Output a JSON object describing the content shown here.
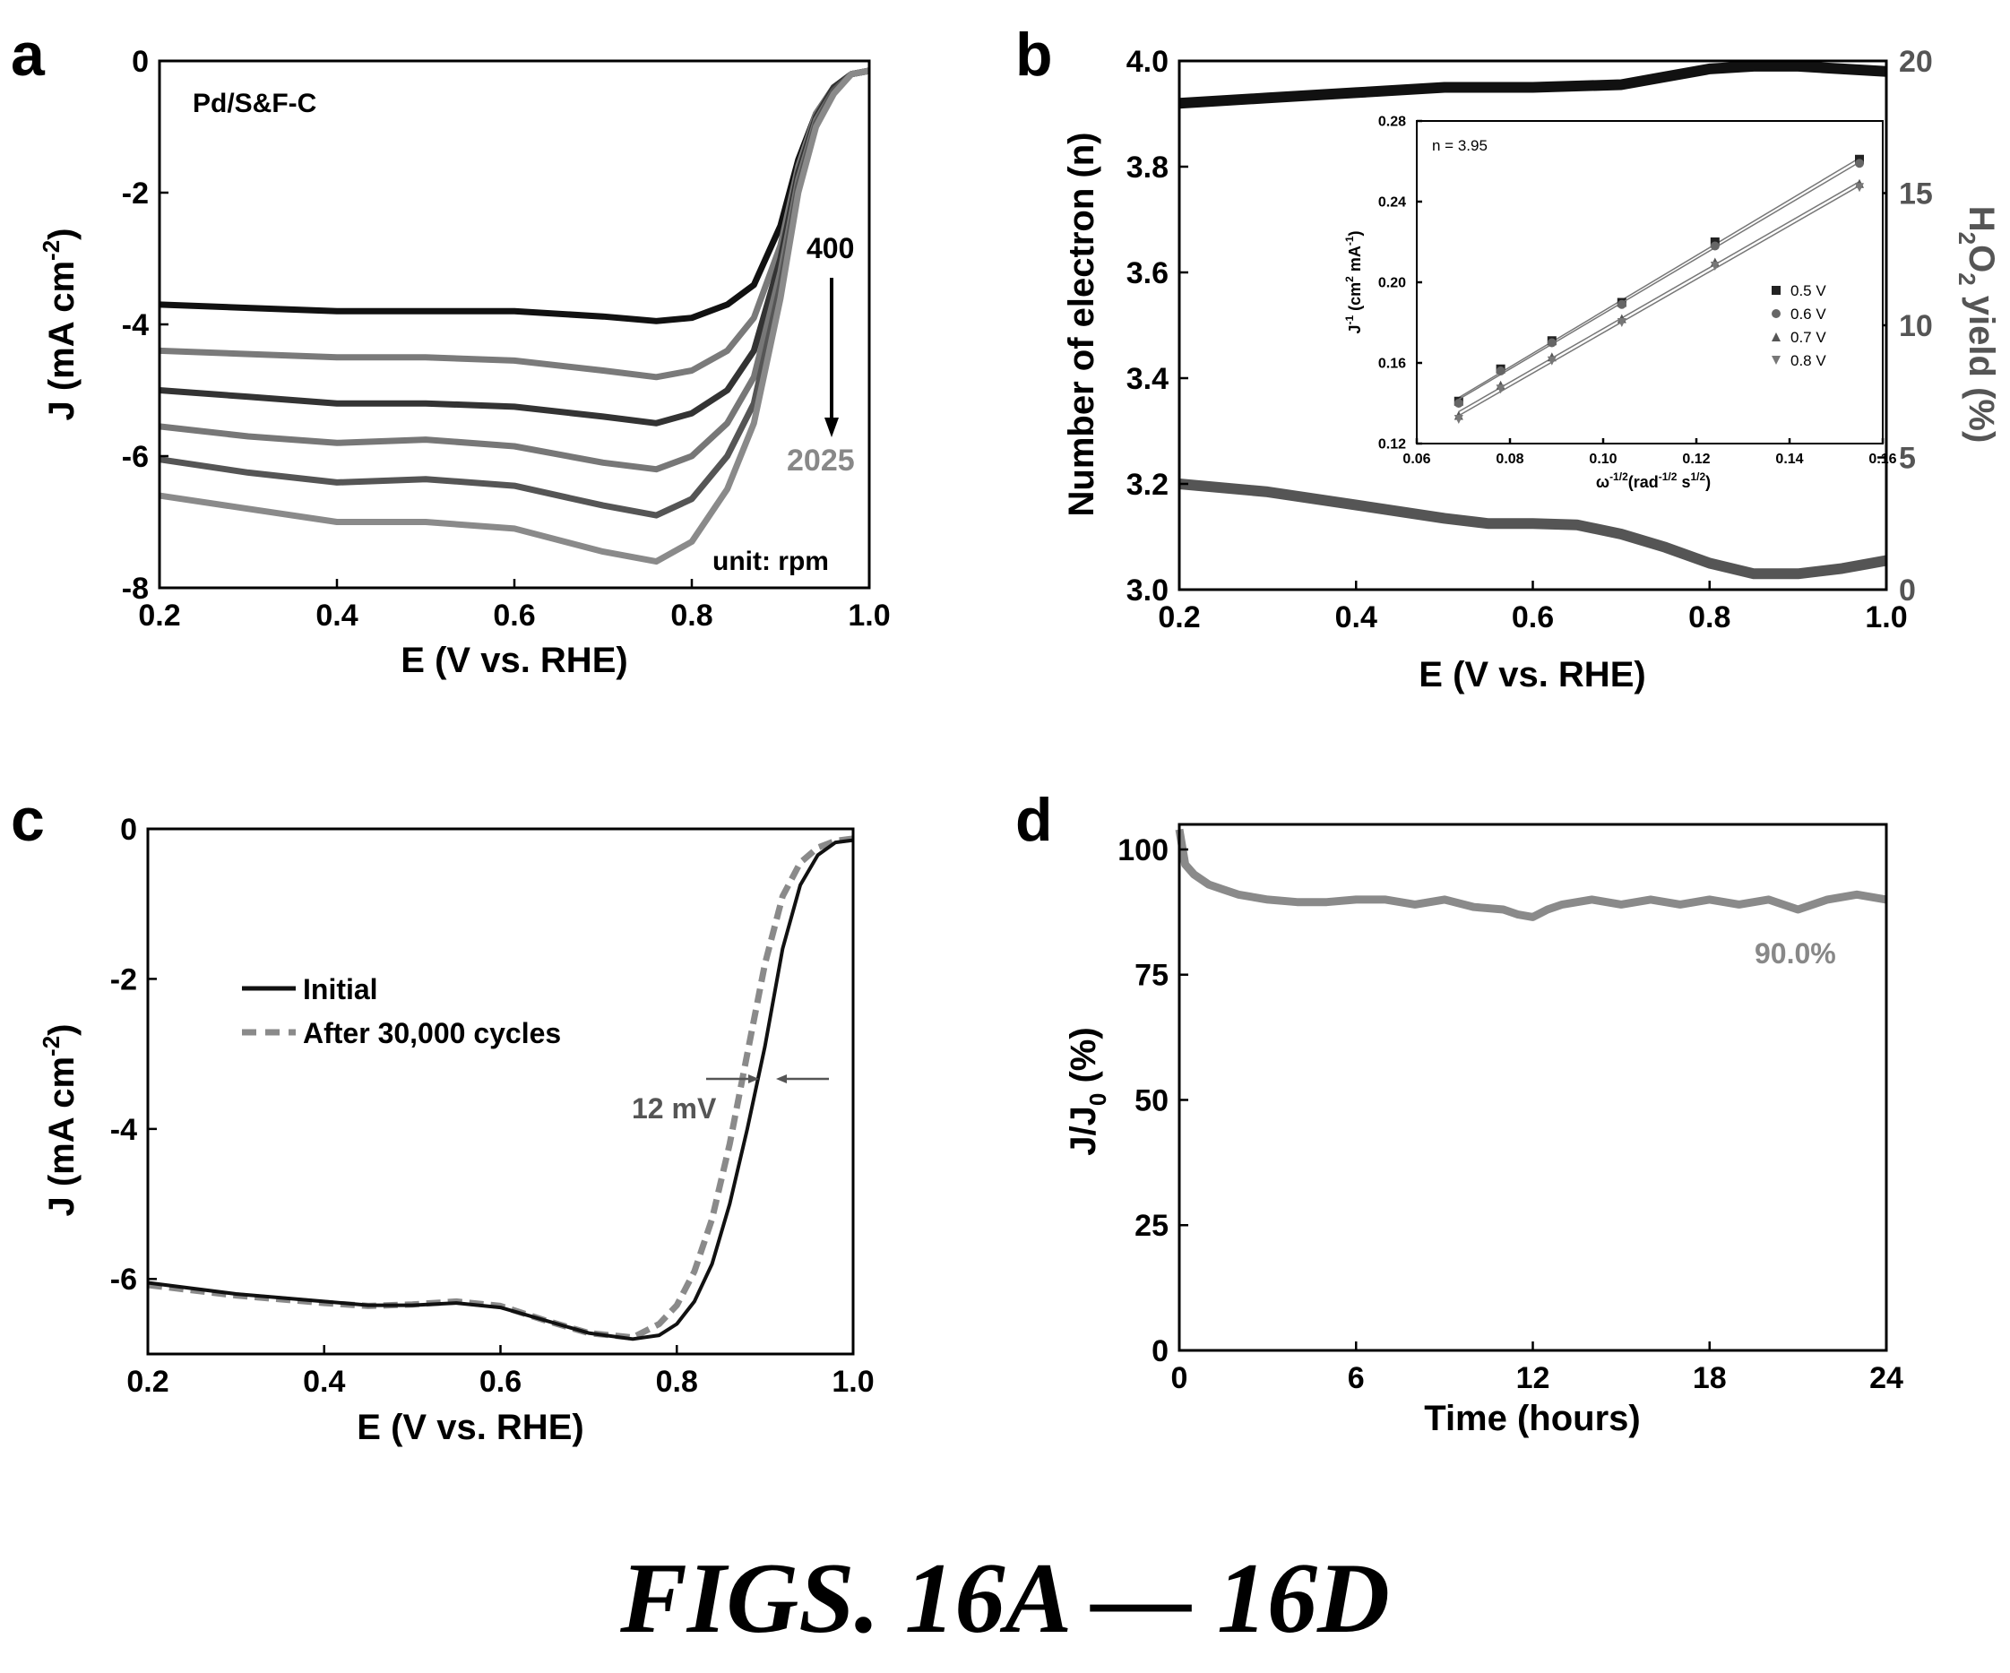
{
  "figure_caption": "FIGS. 16A — 16D",
  "chart_data": [
    {
      "panel": "a",
      "type": "line",
      "xlabel": "E (V vs. RHE)",
      "ylabel": "J (mA cm-2)",
      "ylabel_parts": {
        "base": "J (mA cm",
        "sup": "-2",
        "close": ")"
      },
      "xlim": [
        0.2,
        1.0
      ],
      "ylim": [
        -8,
        0
      ],
      "x_ticks": [
        "0.2",
        "0.4",
        "0.6",
        "0.8",
        "1.0"
      ],
      "y_ticks": [
        "-8",
        "-6",
        "-4",
        "-2",
        "0"
      ],
      "annotations": {
        "sample": "Pd/S&F-C",
        "start_rpm": "400",
        "end_rpm": "2025",
        "unit": "unit: rpm"
      },
      "series": [
        {
          "color": "#111111",
          "x": [
            0.2,
            0.3,
            0.4,
            0.5,
            0.6,
            0.7,
            0.76,
            0.8,
            0.84,
            0.87,
            0.9,
            0.92,
            0.94,
            0.96,
            0.98,
            1.0
          ],
          "y": [
            -3.7,
            -3.75,
            -3.8,
            -3.8,
            -3.8,
            -3.88,
            -3.95,
            -3.9,
            -3.7,
            -3.4,
            -2.5,
            -1.5,
            -0.8,
            -0.4,
            -0.2,
            -0.15
          ]
        },
        {
          "color": "#7a7a7a",
          "x": [
            0.2,
            0.3,
            0.4,
            0.5,
            0.6,
            0.7,
            0.76,
            0.8,
            0.84,
            0.87,
            0.9,
            0.92,
            0.94,
            0.96,
            0.98,
            1.0
          ],
          "y": [
            -4.4,
            -4.45,
            -4.5,
            -4.5,
            -4.55,
            -4.7,
            -4.8,
            -4.7,
            -4.4,
            -3.9,
            -2.8,
            -1.6,
            -0.8,
            -0.4,
            -0.2,
            -0.15
          ]
        },
        {
          "color": "#333333",
          "x": [
            0.2,
            0.3,
            0.4,
            0.5,
            0.6,
            0.7,
            0.76,
            0.8,
            0.84,
            0.87,
            0.9,
            0.92,
            0.94,
            0.96,
            0.98,
            1.0
          ],
          "y": [
            -5.0,
            -5.1,
            -5.2,
            -5.2,
            -5.25,
            -5.4,
            -5.5,
            -5.35,
            -5.0,
            -4.4,
            -3.0,
            -1.7,
            -0.85,
            -0.4,
            -0.2,
            -0.15
          ]
        },
        {
          "color": "#777777",
          "x": [
            0.2,
            0.3,
            0.4,
            0.5,
            0.6,
            0.7,
            0.76,
            0.8,
            0.84,
            0.87,
            0.9,
            0.92,
            0.94,
            0.96,
            0.98,
            1.0
          ],
          "y": [
            -5.55,
            -5.7,
            -5.8,
            -5.75,
            -5.85,
            -6.1,
            -6.2,
            -6.0,
            -5.5,
            -4.8,
            -3.2,
            -1.8,
            -0.9,
            -0.45,
            -0.2,
            -0.15
          ]
        },
        {
          "color": "#555555",
          "x": [
            0.2,
            0.3,
            0.4,
            0.5,
            0.6,
            0.7,
            0.76,
            0.8,
            0.84,
            0.87,
            0.9,
            0.92,
            0.94,
            0.96,
            0.98,
            1.0
          ],
          "y": [
            -6.05,
            -6.25,
            -6.4,
            -6.35,
            -6.45,
            -6.75,
            -6.9,
            -6.65,
            -6.0,
            -5.2,
            -3.4,
            -1.9,
            -0.95,
            -0.45,
            -0.2,
            -0.15
          ]
        },
        {
          "color": "#8a8a8a",
          "x": [
            0.2,
            0.3,
            0.4,
            0.5,
            0.6,
            0.7,
            0.76,
            0.8,
            0.84,
            0.87,
            0.9,
            0.92,
            0.94,
            0.96,
            0.98,
            1.0
          ],
          "y": [
            -6.6,
            -6.8,
            -7.0,
            -7.0,
            -7.1,
            -7.45,
            -7.6,
            -7.3,
            -6.5,
            -5.5,
            -3.6,
            -2.0,
            -1.0,
            -0.5,
            -0.2,
            -0.15
          ]
        }
      ]
    },
    {
      "panel": "b",
      "type": "line",
      "xlabel": "E (V vs. RHE)",
      "ylabel": "Number of electron (n)",
      "y2label": "H2O2 yield (%)",
      "y2label_parts": {
        "a": "H",
        "s1": "2",
        "b": "O",
        "s2": "2",
        "c": " yield (%)"
      },
      "xlim": [
        0.2,
        1.0
      ],
      "ylim": [
        3.0,
        4.0
      ],
      "y2lim": [
        0,
        20
      ],
      "x_ticks": [
        "0.2",
        "0.4",
        "0.6",
        "0.8",
        "1.0"
      ],
      "y_ticks": [
        "3.0",
        "3.2",
        "3.4",
        "3.6",
        "3.8",
        "4.0"
      ],
      "y2_ticks": [
        "0",
        "5",
        "10",
        "15",
        "20"
      ],
      "series": [
        {
          "axis": "left",
          "color": "#111111",
          "x": [
            0.2,
            0.3,
            0.4,
            0.5,
            0.6,
            0.7,
            0.75,
            0.8,
            0.85,
            0.9,
            0.95,
            1.0
          ],
          "y": [
            3.92,
            3.93,
            3.94,
            3.95,
            3.95,
            3.955,
            3.97,
            3.985,
            3.99,
            3.99,
            3.985,
            3.98
          ]
        },
        {
          "axis": "right",
          "color": "#555555",
          "x": [
            0.2,
            0.3,
            0.4,
            0.5,
            0.55,
            0.6,
            0.65,
            0.7,
            0.75,
            0.8,
            0.85,
            0.9,
            0.95,
            1.0
          ],
          "y": [
            4.0,
            3.7,
            3.2,
            2.7,
            2.5,
            2.5,
            2.45,
            2.1,
            1.6,
            1.0,
            0.6,
            0.6,
            0.8,
            1.1
          ]
        }
      ],
      "inset": {
        "annotation": "n = 3.95",
        "xlabel": "ω-1/2(rad-1/2 s1/2)",
        "xlabel_parts": {
          "w": "ω",
          "s1": "-1/2",
          "m1": "(rad",
          "s2": "-1/2",
          "m2": " s",
          "s3": "1/2",
          "end": ")"
        },
        "ylabel": "J-1 (cm2 mA-1)",
        "ylabel_parts": {
          "a": "J",
          "s1": "-1",
          "b": " (cm",
          "s2": "2",
          "c": " mA",
          "s3": "-1",
          "d": ")"
        },
        "xlim": [
          0.06,
          0.16
        ],
        "ylim": [
          0.12,
          0.28
        ],
        "x_ticks": [
          "0.06",
          "0.08",
          "0.10",
          "0.12",
          "0.14",
          "0.16"
        ],
        "y_ticks": [
          "0.12",
          "0.16",
          "0.20",
          "0.24",
          "0.28"
        ],
        "series": [
          {
            "name": "0.5 V",
            "marker": "square",
            "x": [
              0.069,
              0.078,
              0.089,
              0.104,
              0.124,
              0.155
            ],
            "y": [
              0.141,
              0.157,
              0.171,
              0.19,
              0.22,
              0.261
            ]
          },
          {
            "name": "0.6 V",
            "marker": "circle",
            "x": [
              0.069,
              0.078,
              0.089,
              0.104,
              0.124,
              0.155
            ],
            "y": [
              0.14,
              0.156,
              0.17,
              0.189,
              0.218,
              0.259
            ]
          },
          {
            "name": "0.7 V",
            "marker": "triangle-up",
            "x": [
              0.069,
              0.078,
              0.089,
              0.104,
              0.124,
              0.155
            ],
            "y": [
              0.134,
              0.149,
              0.163,
              0.182,
              0.21,
              0.249
            ]
          },
          {
            "name": "0.8 V",
            "marker": "triangle-down",
            "x": [
              0.069,
              0.078,
              0.089,
              0.104,
              0.124,
              0.155
            ],
            "y": [
              0.132,
              0.147,
              0.161,
              0.18,
              0.208,
              0.247
            ]
          }
        ]
      }
    },
    {
      "panel": "c",
      "type": "line",
      "xlabel": "E (V vs. RHE)",
      "ylabel": "J (mA cm-2)",
      "ylabel_parts": {
        "base": "J (mA cm",
        "sup": "-2",
        "close": ")"
      },
      "xlim": [
        0.2,
        1.0
      ],
      "ylim": [
        -7,
        0
      ],
      "x_ticks": [
        "0.2",
        "0.4",
        "0.6",
        "0.8",
        "1.0"
      ],
      "y_ticks": [
        "-6",
        "-4",
        "-2",
        "0"
      ],
      "annotation": "12 mV",
      "legend_position": "top-left",
      "series": [
        {
          "name": "Initial",
          "color": "#111111",
          "dash": "solid",
          "x": [
            0.2,
            0.3,
            0.4,
            0.45,
            0.5,
            0.55,
            0.6,
            0.65,
            0.7,
            0.75,
            0.78,
            0.8,
            0.82,
            0.84,
            0.86,
            0.88,
            0.9,
            0.92,
            0.94,
            0.96,
            0.98,
            1.0
          ],
          "y": [
            -6.05,
            -6.2,
            -6.3,
            -6.35,
            -6.35,
            -6.32,
            -6.38,
            -6.55,
            -6.72,
            -6.8,
            -6.75,
            -6.6,
            -6.3,
            -5.8,
            -5.0,
            -4.0,
            -2.9,
            -1.6,
            -0.75,
            -0.35,
            -0.18,
            -0.15
          ]
        },
        {
          "name": "After 30,000 cycles",
          "color": "#8a8a8a",
          "dash": "dashed",
          "x": [
            0.2,
            0.3,
            0.4,
            0.45,
            0.5,
            0.55,
            0.6,
            0.65,
            0.7,
            0.75,
            0.78,
            0.8,
            0.82,
            0.84,
            0.86,
            0.88,
            0.9,
            0.92,
            0.94,
            0.96,
            0.98,
            1.0
          ],
          "y": [
            -6.08,
            -6.22,
            -6.32,
            -6.36,
            -6.34,
            -6.3,
            -6.36,
            -6.55,
            -6.72,
            -6.78,
            -6.6,
            -6.35,
            -5.9,
            -5.2,
            -4.2,
            -3.0,
            -1.8,
            -0.9,
            -0.45,
            -0.25,
            -0.16,
            -0.13
          ]
        }
      ]
    },
    {
      "panel": "d",
      "type": "line",
      "xlabel": "Time (hours)",
      "ylabel": "J/J0 (%)",
      "ylabel_parts": {
        "a": "J/J",
        "sub": "0",
        "b": " (%)"
      },
      "xlim": [
        0,
        24
      ],
      "ylim": [
        0,
        105
      ],
      "x_ticks": [
        "0",
        "6",
        "12",
        "18",
        "24"
      ],
      "y_ticks": [
        "0",
        "25",
        "50",
        "75",
        "100"
      ],
      "annotation": "90.0%",
      "series": [
        {
          "color": "#8a8a8a",
          "x": [
            0,
            0.2,
            0.5,
            1,
            1.5,
            2,
            3,
            4,
            5,
            6,
            7,
            8,
            9,
            10,
            11,
            11.5,
            12,
            12.5,
            13,
            14,
            15,
            16,
            17,
            18,
            19,
            20,
            21,
            22,
            23,
            24
          ],
          "y": [
            104,
            97,
            95,
            93,
            92,
            91,
            90,
            89.5,
            89.5,
            90,
            90,
            89,
            90,
            88.5,
            88,
            87,
            86.5,
            88,
            89,
            90,
            89,
            90,
            89,
            90,
            89,
            90,
            88,
            90,
            91,
            90
          ]
        }
      ]
    }
  ]
}
